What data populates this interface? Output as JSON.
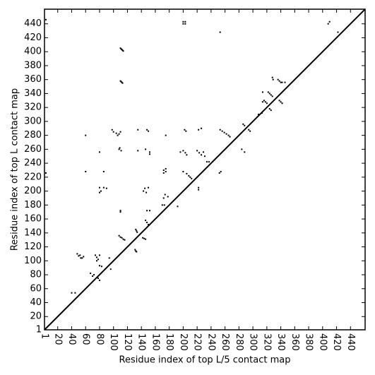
{
  "chart_data": {
    "type": "scatter",
    "xlabel": "Residue index of top L/5 contact map",
    "ylabel": "Residue index of top L contact map",
    "xlim": [
      1,
      461
    ],
    "ylim": [
      1,
      461
    ],
    "xticks": [
      1,
      20,
      40,
      60,
      80,
      100,
      120,
      140,
      160,
      180,
      200,
      220,
      240,
      260,
      280,
      300,
      320,
      340,
      360,
      380,
      400,
      420,
      440
    ],
    "yticks": [
      1,
      20,
      40,
      60,
      80,
      100,
      120,
      140,
      160,
      180,
      200,
      220,
      240,
      260,
      280,
      300,
      320,
      340,
      360,
      380,
      400,
      420,
      440
    ],
    "color": "#000000",
    "x": [
      3,
      3,
      110,
      111,
      112,
      113,
      114,
      110,
      111,
      112,
      113,
      200,
      203,
      200,
      203,
      253,
      408,
      410,
      422,
      98,
      100,
      104,
      108,
      110,
      106,
      108,
      111,
      109,
      135,
      135,
      148,
      150,
      146,
      152,
      152,
      60,
      60,
      80,
      86,
      80,
      82,
      86,
      90,
      80,
      110,
      110,
      108,
      110,
      112,
      114,
      116,
      132,
      133,
      134,
      131,
      132,
      133,
      145,
      143,
      147,
      150,
      142,
      144,
      146,
      146,
      148,
      150,
      148,
      152,
      48,
      50,
      53,
      55,
      57,
      52,
      74,
      76,
      78,
      80,
      76,
      80,
      83,
      67,
      70,
      72,
      78,
      80,
      40,
      45,
      94,
      96,
      172,
      175,
      172,
      175,
      174,
      178,
      172,
      170,
      173,
      175,
      202,
      204,
      200,
      196,
      203,
      205,
      200,
      205,
      210,
      208,
      212,
      222,
      226,
      220,
      223,
      226,
      229,
      231,
      234,
      237,
      222,
      222,
      192,
      253,
      256,
      259,
      262,
      265,
      267,
      286,
      288,
      294,
      296,
      308,
      313,
      314,
      328,
      329,
      254,
      252,
      284,
      288,
      316,
      318,
      320,
      314,
      322,
      324,
      326,
      328,
      324,
      326,
      336,
      338,
      340,
      342,
      338,
      340,
      342,
      346
    ],
    "values": [
      446,
      226,
      405,
      404,
      403,
      402,
      401,
      358,
      357,
      356,
      355,
      443,
      443,
      440,
      440,
      428,
      440,
      443,
      428,
      288,
      285,
      283,
      282,
      285,
      280,
      260,
      258,
      262,
      288,
      258,
      288,
      286,
      260,
      256,
      253,
      280,
      228,
      256,
      228,
      205,
      200,
      205,
      204,
      198,
      172,
      170,
      136,
      134,
      133,
      131,
      130,
      145,
      143,
      141,
      116,
      114,
      113,
      204,
      200,
      198,
      205,
      133,
      132,
      131,
      158,
      155,
      152,
      172,
      172,
      110,
      107,
      104,
      104,
      106,
      108,
      108,
      105,
      102,
      108,
      100,
      93,
      92,
      82,
      78,
      80,
      75,
      72,
      54,
      54,
      104,
      88,
      230,
      228,
      226,
      232,
      195,
      192,
      190,
      180,
      180,
      280,
      288,
      286,
      258,
      256,
      255,
      252,
      228,
      225,
      220,
      222,
      218,
      288,
      290,
      258,
      255,
      252,
      256,
      250,
      242,
      242,
      202,
      205,
      178,
      288,
      286,
      284,
      282,
      280,
      278,
      296,
      294,
      288,
      286,
      310,
      312,
      342,
      363,
      360,
      228,
      226,
      260,
      256,
      330,
      328,
      326,
      328,
      342,
      340,
      338,
      336,
      318,
      316,
      360,
      358,
      356,
      356,
      330,
      328,
      326,
      356
    ]
  }
}
